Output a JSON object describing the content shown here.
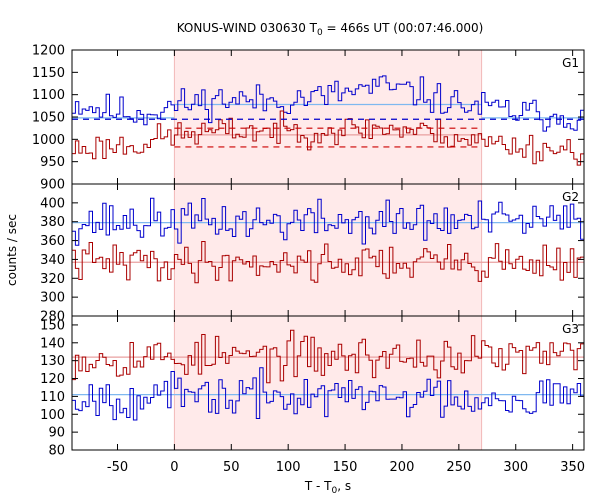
{
  "chart_data": {
    "type": "line",
    "title_main": "KONUS-WIND 030630 T",
    "title_sub": "0",
    "title_rest": " = 466s UT (00:07:46.000)",
    "xlabel_main": "T - T",
    "xlabel_sub": "0",
    "xlabel_rest": ", s",
    "ylabel": "counts / sec",
    "xlim": [
      -90,
      360
    ],
    "xticks": [
      -50,
      0,
      50,
      100,
      150,
      200,
      250,
      300,
      350
    ],
    "bin_width": 3,
    "shaded_interval": [
      0,
      270
    ],
    "colors": {
      "blue": "#0000cc",
      "red": "#aa0000",
      "fit_blue": "#7fb8f0",
      "fit_red": "#e8a0a0",
      "dash_red": "#cc0000",
      "shade": "#ffeaea"
    },
    "panels": [
      {
        "label": "G1",
        "ylim": [
          900,
          1200
        ],
        "yticks": [
          900,
          950,
          1000,
          1050,
          1100,
          1150,
          1200
        ],
        "series": [
          {
            "color": "blue",
            "level_path": [
              [
                -90,
                1082
              ],
              [
                -60,
                1065
              ],
              [
                -30,
                1058
              ],
              [
                0,
                1075
              ],
              [
                40,
                1090
              ],
              [
                80,
                1085
              ],
              [
                130,
                1095
              ],
              [
                180,
                1118
              ],
              [
                210,
                1105
              ],
              [
                250,
                1078
              ],
              [
                280,
                1068
              ],
              [
                320,
                1055
              ],
              [
                360,
                1050
              ]
            ],
            "noise": 18,
            "seed": 11
          },
          {
            "color": "red",
            "level_path": [
              [
                -90,
                978
              ],
              [
                -30,
                990
              ],
              [
                0,
                1010
              ],
              [
                60,
                1020
              ],
              [
                120,
                1018
              ],
              [
                180,
                1025
              ],
              [
                230,
                1015
              ],
              [
                270,
                995
              ],
              [
                320,
                980
              ],
              [
                360,
                975
              ]
            ],
            "noise": 16,
            "seed": 23
          }
        ],
        "fits": [
          {
            "color": "fit_blue",
            "segments": [
              [
                -90,
                1048,
                0,
                1048
              ],
              [
                0,
                1078,
                270,
                1078
              ],
              [
                270,
                1048,
                360,
                1048
              ]
            ]
          },
          {
            "color": "fit_red",
            "segments": [
              [
                0,
                1010,
                270,
                1010
              ]
            ]
          }
        ],
        "dashed": [
          {
            "color": "blue",
            "y": 1045
          },
          {
            "color": "dash_red",
            "y": 1025,
            "from": 0,
            "to": 270
          },
          {
            "color": "dash_red",
            "y": 983,
            "from": 0,
            "to": 270
          }
        ]
      },
      {
        "label": "G2",
        "ylim": [
          280,
          420
        ],
        "yticks": [
          280,
          300,
          320,
          340,
          360,
          380,
          400
        ],
        "series": [
          {
            "color": "blue",
            "level_path": [
              [
                -90,
                380
              ],
              [
                360,
                380
              ]
            ],
            "noise": 11,
            "seed": 37
          },
          {
            "color": "red",
            "level_path": [
              [
                -90,
                337
              ],
              [
                360,
                337
              ]
            ],
            "noise": 10,
            "seed": 41
          }
        ],
        "fits": [
          {
            "color": "fit_blue",
            "segments": [
              [
                -90,
                379,
                360,
                379
              ]
            ]
          },
          {
            "color": "fit_red",
            "segments": [
              [
                -90,
                337,
                360,
                337
              ]
            ]
          }
        ],
        "dashed": []
      },
      {
        "label": "G3",
        "ylim": [
          80,
          155
        ],
        "yticks": [
          80,
          90,
          100,
          110,
          120,
          130,
          140,
          150
        ],
        "series": [
          {
            "color": "red",
            "level_path": [
              [
                -90,
                132
              ],
              [
                360,
                132
              ]
            ],
            "noise": 6,
            "seed": 53
          },
          {
            "color": "blue",
            "level_path": [
              [
                -90,
                110
              ],
              [
                360,
                110
              ]
            ],
            "noise": 6,
            "seed": 67
          }
        ],
        "fits": [
          {
            "color": "fit_red",
            "segments": [
              [
                -90,
                132,
                360,
                132
              ]
            ]
          },
          {
            "color": "fit_blue",
            "segments": [
              [
                -90,
                111,
                360,
                111
              ]
            ]
          }
        ],
        "dashed": []
      }
    ]
  }
}
